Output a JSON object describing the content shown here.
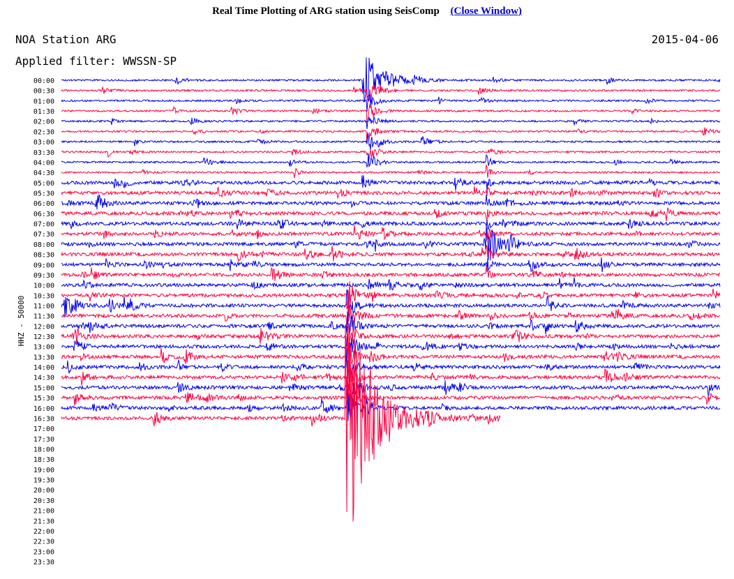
{
  "header": {
    "title": "Real Time Plotting of ARG station using SeisComp",
    "close_link": "(Close Window)"
  },
  "plot": {
    "station": "NOA Station ARG",
    "date": "2015-04-06",
    "filter": "Applied filter: WWSSN-SP",
    "channel_label": "HHZ - 50000",
    "trace_colors": [
      "#0000ee",
      "#ff0040"
    ],
    "time_labels": [
      "00:00",
      "00:30",
      "01:00",
      "01:30",
      "02:00",
      "02:30",
      "03:00",
      "03:30",
      "04:00",
      "04:30",
      "05:00",
      "05:30",
      "06:00",
      "06:30",
      "07:00",
      "07:30",
      "08:00",
      "08:30",
      "09:00",
      "09:30",
      "10:00",
      "10:30",
      "11:00",
      "11:30",
      "12:00",
      "12:30",
      "13:00",
      "13:30",
      "14:00",
      "14:30",
      "15:00",
      "15:30",
      "16:00",
      "16:30",
      "17:00",
      "17:30",
      "18:00",
      "18:30",
      "19:00",
      "19:30",
      "20:00",
      "20:30",
      "21:00",
      "21:30",
      "22:00",
      "22:30",
      "23:00",
      "23:30"
    ]
  }
}
